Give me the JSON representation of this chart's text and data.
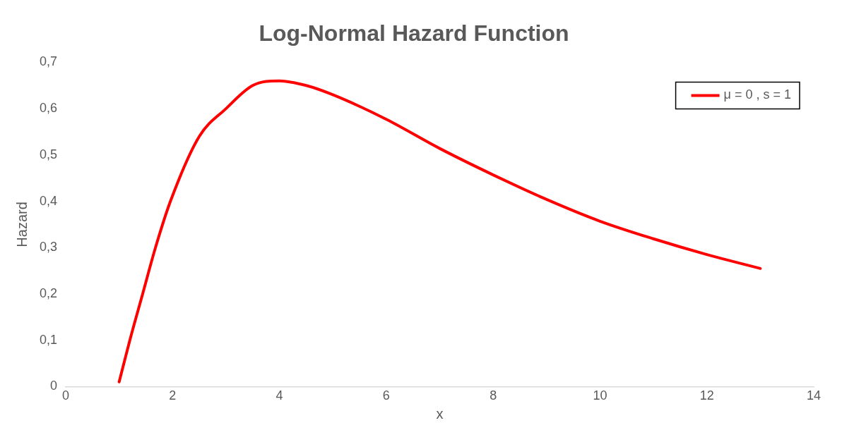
{
  "chart_data": {
    "type": "line",
    "title": "Log-Normal Hazard Function",
    "xlabel": "x",
    "ylabel": "Hazard",
    "x": [
      1,
      1.2,
      1.44,
      1.68,
      1.96,
      2.5,
      3,
      3.5,
      4,
      4.5,
      5,
      6,
      7,
      8,
      9,
      10,
      11,
      12,
      13
    ],
    "series": [
      {
        "name": "μ = 0 , s = 1",
        "color": "#ff0000",
        "values": [
          0.01,
          0.1,
          0.2,
          0.3,
          0.4,
          0.54,
          0.6,
          0.65,
          0.66,
          0.65,
          0.63,
          0.577,
          0.514,
          0.457,
          0.404,
          0.357,
          0.319,
          0.285,
          0.255
        ]
      }
    ],
    "xlim": [
      0,
      14
    ],
    "xticks": [
      0,
      2,
      4,
      6,
      8,
      10,
      12,
      14
    ],
    "ylim": [
      0,
      0.7
    ],
    "yticks": [
      0,
      {
        "value": 0.1,
        "label": "0,1"
      },
      {
        "value": 0.2,
        "label": "0,2"
      },
      {
        "value": 0.3,
        "label": "0,3"
      },
      {
        "value": 0.4,
        "label": "0,4"
      },
      {
        "value": 0.5,
        "label": "0,5"
      },
      {
        "value": 0.6,
        "label": "0,6"
      },
      {
        "value": 0.7,
        "label": "0,7"
      }
    ],
    "grid": false,
    "legend": "top right",
    "marker": "none",
    "line_style": "solid"
  }
}
